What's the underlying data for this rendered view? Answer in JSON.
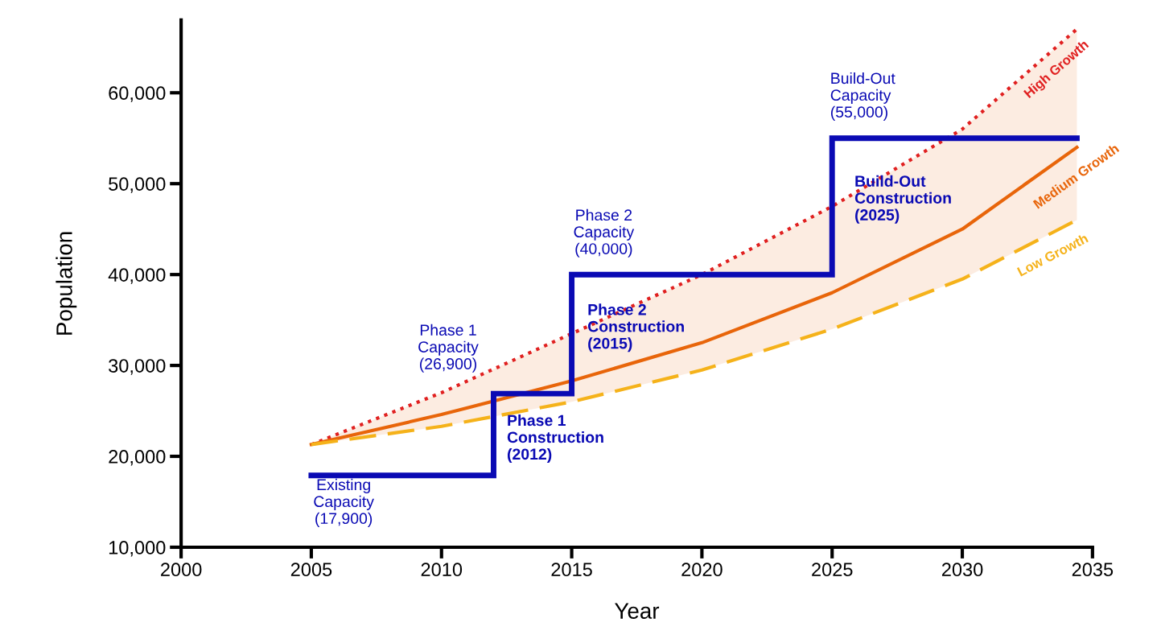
{
  "chart_data": {
    "type": "line",
    "xlabel": "Year",
    "ylabel": "Population",
    "xlim": [
      2000,
      2035
    ],
    "ylim": [
      10000,
      68000
    ],
    "xticks": [
      2000,
      2005,
      2010,
      2015,
      2020,
      2025,
      2030,
      2035
    ],
    "yticks": [
      {
        "value": 10000,
        "label": "10,000"
      },
      {
        "value": 20000,
        "label": "20,000"
      },
      {
        "value": 30000,
        "label": "30,000"
      },
      {
        "value": 40000,
        "label": "40,000"
      },
      {
        "value": 50000,
        "label": "50,000"
      },
      {
        "value": 60000,
        "label": "60,000"
      }
    ],
    "grid": false,
    "legend": false,
    "series": [
      {
        "type": "step",
        "color": "#0a0ab4",
        "line_style": "solid",
        "x": [
          2005,
          2012,
          2015,
          2025,
          2034.4
        ],
        "values": [
          17900,
          26900,
          40000,
          55000,
          55000
        ]
      },
      {
        "name": "High Growth",
        "color": "#e02020",
        "line_style": "dotted",
        "x": [
          2005,
          2010,
          2015,
          2020,
          2025,
          2030,
          2034.4
        ],
        "values": [
          21300,
          27000,
          33500,
          40000,
          47500,
          56000,
          67000
        ]
      },
      {
        "name": "Medium Growth",
        "color": "#e8650a",
        "line_style": "solid",
        "x": [
          2005,
          2010,
          2015,
          2020,
          2025,
          2030,
          2034.4
        ],
        "values": [
          21300,
          24600,
          28300,
          32500,
          38000,
          45000,
          54000
        ],
        "lower": [
          21300,
          23300,
          26000,
          29500,
          34000,
          39500,
          46000
        ],
        "upper": [
          21300,
          27000,
          33500,
          40000,
          47500,
          56000,
          67000
        ]
      },
      {
        "name": "Low Growth",
        "color": "#f5b21a",
        "line_style": "dashed",
        "x": [
          2005,
          2010,
          2015,
          2020,
          2025,
          2030,
          2034.4
        ],
        "values": [
          21300,
          23300,
          26000,
          29500,
          34000,
          39500,
          46000
        ]
      }
    ],
    "annotations": [
      "Existing\nCapacity\n(17,900)",
      "Phase 1\nCapacity\n(26,900)",
      "Phase 1\nConstruction\n(2012)",
      "Phase 2\nCapacity\n(40,000)",
      "Phase 2\nConstruction\n(2015)",
      "Build-Out\nCapacity\n(55,000)",
      "Build-Out\nConstruction\n(2025)"
    ]
  }
}
